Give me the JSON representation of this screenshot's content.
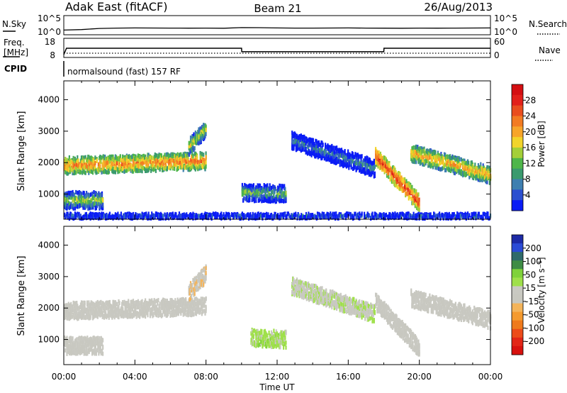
{
  "header": {
    "title_left": "Adak East (fitACF)",
    "title_center": "Beam 21",
    "title_right": "26/Aug/2013"
  },
  "panel_labels": {
    "nsky": "N.Sky",
    "nsearch": "N.Search",
    "freq_line1": "Freq.",
    "freq_line2": "[MHz]",
    "nave": "Nave",
    "cpid": "CPID",
    "cpid_value": "normalsound (fast) 157 RF"
  },
  "noise_panel": {
    "left_ticks": [
      "10^5",
      "10^0"
    ],
    "right_ticks": [
      "10^5",
      "10^0"
    ]
  },
  "freq_panel": {
    "left_ticks": [
      "18",
      "8"
    ],
    "right_ticks": [
      "60",
      "0"
    ]
  },
  "axes": {
    "x_ticks": [
      "00:00",
      "04:00",
      "08:00",
      "12:00",
      "16:00",
      "20:00",
      "00:00"
    ],
    "xlabel": "Time UT",
    "ylabel": "Slant Range [km]",
    "y_ticks": [
      "1000",
      "2000",
      "3000",
      "4000"
    ]
  },
  "colorbars": {
    "power": {
      "label": "Power [dB]",
      "ticks": [
        "4",
        "8",
        "12",
        "16",
        "20",
        "24",
        "28"
      ],
      "colors": [
        "#0a1cf5",
        "#2b4fd0",
        "#3e7fb0",
        "#3a9a6e",
        "#4fb64a",
        "#a4cf38",
        "#f2d42b",
        "#f7a52a",
        "#f27b22",
        "#e94d1e",
        "#e2201a",
        "#d40f12"
      ]
    },
    "velocity": {
      "label": "Velocity [m s⁻¹]",
      "ticks": [
        "200",
        "100",
        "50",
        "15",
        "-15",
        "-50",
        "-100",
        "-200"
      ],
      "colors": [
        "#1d2aa6",
        "#2b4bd6",
        "#2f6a6a",
        "#3e8c45",
        "#7fd23a",
        "#9fe04a",
        "#c9c9c2",
        "#c8c8c0",
        "#f4b45a",
        "#f59a2e",
        "#ef7a1d",
        "#ec4c1a",
        "#e22617",
        "#d8110e"
      ]
    }
  },
  "chart_data": [
    {
      "type": "line",
      "title": "N.Sky / N.Search",
      "x_range": [
        0,
        24
      ],
      "yscale": "log",
      "ylim": [
        1,
        100000
      ],
      "x": [
        0,
        1,
        2,
        3,
        4,
        5,
        6,
        7,
        8,
        9,
        10,
        11,
        12,
        13,
        14,
        15,
        16,
        17,
        18,
        19,
        20,
        21,
        22,
        23,
        24
      ],
      "series": [
        {
          "name": "N.Sky",
          "values": [
            8,
            12,
            30,
            40,
            45,
            42,
            40,
            38,
            40,
            35,
            60,
            55,
            45,
            40,
            40,
            42,
            45,
            40,
            38,
            36,
            40,
            38,
            40,
            42,
            45
          ]
        }
      ]
    },
    {
      "type": "line",
      "title": "Freq. / Nave",
      "x_range": [
        0,
        24
      ],
      "x": [
        0,
        0.15,
        10,
        10.01,
        18,
        18.01,
        24
      ],
      "series": [
        {
          "name": "Freq.",
          "values": [
            8,
            13,
            13,
            10.3,
            10.3,
            13,
            13
          ]
        },
        {
          "name": "Nave",
          "values": [
            0,
            0,
            0,
            0,
            0,
            0,
            0
          ]
        }
      ]
    },
    {
      "type": "heatmap",
      "title": "Power",
      "xlabel": "Time UT",
      "ylabel": "Slant Range [km]",
      "x_range": [
        0,
        24
      ],
      "ylim": [
        200,
        4600
      ],
      "colorbar_label": "Power [dB]",
      "colorbar_range": [
        0,
        30
      ],
      "regions": [
        {
          "time_start": 0.0,
          "time_end": 8.0,
          "range_center_start": 1900,
          "range_center_end": 2050,
          "power_db": 22
        },
        {
          "time_start": 0.0,
          "time_end": 2.2,
          "range_center_start": 800,
          "range_center_end": 800,
          "power_db": 14
        },
        {
          "time_start": 7.0,
          "time_end": 8.0,
          "range_center_start": 2500,
          "range_center_end": 3100,
          "power_db": 16
        },
        {
          "time_start": 10.0,
          "time_end": 12.5,
          "range_center_start": 1050,
          "range_center_end": 1000,
          "power_db": 12
        },
        {
          "time_start": 12.8,
          "time_end": 17.5,
          "range_center_start": 2700,
          "range_center_end": 1800,
          "power_db": 8
        },
        {
          "time_start": 17.5,
          "time_end": 20.0,
          "range_center_start": 2200,
          "range_center_end": 700,
          "power_db": 26
        },
        {
          "time_start": 19.5,
          "time_end": 24.0,
          "range_center_start": 2300,
          "range_center_end": 1600,
          "power_db": 20
        },
        {
          "time_start": 0.0,
          "time_end": 24.0,
          "range_center_start": 300,
          "range_center_end": 300,
          "power_db": 6
        }
      ]
    },
    {
      "type": "heatmap",
      "title": "Velocity",
      "xlabel": "Time UT",
      "ylabel": "Slant Range [km]",
      "x_range": [
        0,
        24
      ],
      "ylim": [
        200,
        4600
      ],
      "colorbar_label": "Velocity [m s⁻¹]",
      "colorbar_range": [
        -200,
        200
      ],
      "regions": [
        {
          "time_start": 0.0,
          "time_end": 8.0,
          "range_center_start": 1900,
          "range_center_end": 2050,
          "velocity": 0
        },
        {
          "time_start": 0.0,
          "time_end": 2.2,
          "range_center_start": 800,
          "range_center_end": 800,
          "velocity": 0
        },
        {
          "time_start": 7.0,
          "time_end": 8.0,
          "range_center_start": 2500,
          "range_center_end": 3100,
          "velocity": -20
        },
        {
          "time_start": 10.5,
          "time_end": 12.5,
          "range_center_start": 1050,
          "range_center_end": 1000,
          "velocity": 40
        },
        {
          "time_start": 12.8,
          "time_end": 17.5,
          "range_center_start": 2700,
          "range_center_end": 1800,
          "velocity": 20
        },
        {
          "time_start": 17.5,
          "time_end": 20.0,
          "range_center_start": 2200,
          "range_center_end": 700,
          "velocity": 0
        },
        {
          "time_start": 19.5,
          "time_end": 24.0,
          "range_center_start": 2300,
          "range_center_end": 1600,
          "velocity": 0
        }
      ]
    }
  ]
}
